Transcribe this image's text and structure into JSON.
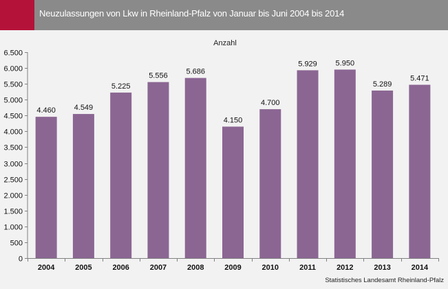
{
  "header": {
    "title": "Neuzulassungen von Lkw in Rheinland-Pfalz von Januar bis Juni 2004 bis 2014",
    "title_bar_color": "#8a8a8a",
    "accent_color": "#b5123a"
  },
  "source": "Statistisches Landesamt Rheinland-Pfalz",
  "chart_data": {
    "type": "bar",
    "title": "Anzahl",
    "xlabel": "",
    "ylabel": "",
    "categories": [
      "2004",
      "2005",
      "2006",
      "2007",
      "2008",
      "2009",
      "2010",
      "2011",
      "2012",
      "2013",
      "2014"
    ],
    "values": [
      4460,
      4549,
      5225,
      5556,
      5686,
      4150,
      4700,
      5929,
      5950,
      5289,
      5471
    ],
    "data_labels": [
      "4.460",
      "4.549",
      "5.225",
      "5.556",
      "5.686",
      "4.150",
      "4.700",
      "5.929",
      "5.950",
      "5.289",
      "5.471"
    ],
    "ylim": [
      0,
      6500
    ],
    "y_ticks": [
      0,
      500,
      1000,
      1500,
      2000,
      2500,
      3000,
      3500,
      4000,
      4500,
      5000,
      5500,
      6000,
      6500
    ],
    "y_tick_labels": [
      "0",
      "500",
      "1.000",
      "1.500",
      "2.000",
      "2.500",
      "3.000",
      "3.500",
      "4.000",
      "4.500",
      "5.000",
      "5.500",
      "6.000",
      "6.500"
    ],
    "grid": false,
    "legend": "none",
    "bar_color": "#8b6693",
    "background_color": "#f2f2f2"
  }
}
